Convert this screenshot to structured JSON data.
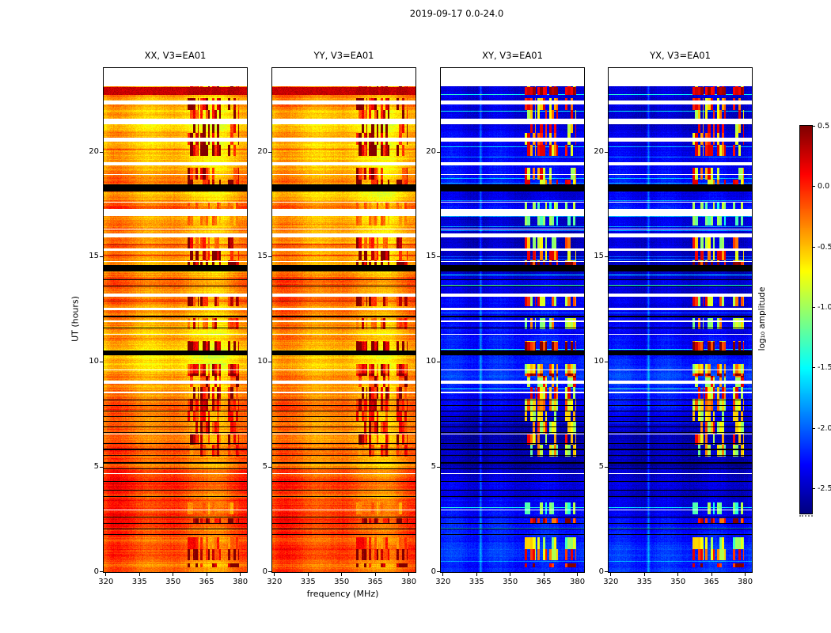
{
  "figure": {
    "title": "2019-09-17 0.0-24.0"
  },
  "panels": [
    {
      "title": "XX, V3=EA01"
    },
    {
      "title": "YY, V3=EA01"
    },
    {
      "title": "XY, V3=EA01"
    },
    {
      "title": "YX, V3=EA01"
    }
  ],
  "axes": {
    "xlabel": "frequency (MHz)",
    "ylabel": "UT (hours)",
    "xticks": [
      320,
      335,
      350,
      365,
      380
    ],
    "yticks": [
      0,
      5,
      10,
      15,
      20
    ],
    "xlim": [
      319,
      383
    ],
    "ylim": [
      0,
      24
    ]
  },
  "colorbar": {
    "label": "log₁₀ amplitude",
    "tick_labels": [
      "0.5",
      "0.0",
      "-0.5",
      "-1.0",
      "-1.5",
      "-2.0",
      "-2.5"
    ],
    "tick_values": [
      0.5,
      0.0,
      -0.5,
      -1.0,
      -1.5,
      -2.0,
      -2.5
    ],
    "vmin": -2.7,
    "vmax": 0.51,
    "cmap": "jet"
  },
  "chart_data": {
    "type": "heatmap",
    "title": "2019-09-17 0.0-24.0",
    "layout": "four dynamic-spectrum (waterfall) panels side by side sharing a jet colorbar",
    "panels": [
      {
        "title": "XX, V3=EA01",
        "polarization": "XX",
        "appearance": "parallel-hand, high amplitude: orange/yellow background with red RFI blocks, log10 amp ~ -0.6 to +0.3"
      },
      {
        "title": "YY, V3=EA01",
        "polarization": "YY",
        "appearance": "parallel-hand, high amplitude: orange/yellow background with red RFI blocks, log10 amp ~ -0.6 to +0.3"
      },
      {
        "title": "XY, V3=EA01",
        "polarization": "XY",
        "appearance": "cross-hand, low amplitude: dark blue background (~ -2.5 to -2.0) with cyan streaks and green/orange RFI blocks"
      },
      {
        "title": "YX, V3=EA01",
        "polarization": "YX",
        "appearance": "cross-hand, low amplitude: dark blue background (~ -2.5 to -2.0) with cyan streaks and green/orange RFI blocks"
      }
    ],
    "x": {
      "label": "frequency (MHz)",
      "range": [
        319,
        383
      ],
      "ticks": [
        320,
        335,
        350,
        365,
        380
      ]
    },
    "y": {
      "label": "UT (hours)",
      "range": [
        0,
        24
      ],
      "ticks": [
        0,
        5,
        10,
        15,
        20
      ]
    },
    "color_scale": {
      "label": "log10 amplitude",
      "cmap": "jet",
      "vmin": -2.7,
      "vmax": 0.51,
      "ticks": [
        0.5,
        0.0,
        -0.5,
        -1.0,
        -1.5,
        -2.0,
        -2.5
      ]
    },
    "features": {
      "white_gap_times_hours": [
        [
          23.12,
          24.0
        ],
        [
          22.28,
          22.45
        ],
        [
          21.32,
          21.6
        ],
        [
          20.5,
          20.68
        ],
        [
          19.38,
          19.5
        ],
        [
          18.92,
          18.96
        ],
        [
          17.58,
          17.62
        ],
        [
          16.95,
          17.28
        ],
        [
          16.3,
          16.34
        ],
        [
          15.95,
          16.12
        ],
        [
          15.28,
          15.4
        ],
        [
          14.78,
          14.82
        ],
        [
          13.12,
          13.28
        ],
        [
          12.48,
          12.6
        ],
        [
          11.92,
          11.97
        ],
        [
          11.3,
          11.35
        ],
        [
          9.62,
          9.66
        ],
        [
          8.98,
          9.12
        ],
        [
          8.5,
          8.6
        ],
        [
          6.55,
          6.6
        ],
        [
          4.66,
          4.7
        ],
        [
          2.92,
          2.96
        ],
        [
          0.55,
          0.58
        ]
      ],
      "flagged_black_times_hours": [
        [
          18.12,
          18.45
        ],
        [
          14.32,
          14.6
        ],
        [
          10.32,
          10.55
        ],
        [
          13.6,
          13.64
        ],
        [
          13.92,
          13.95
        ],
        [
          12.15,
          12.19
        ],
        [
          11.62,
          11.65
        ],
        [
          8.18,
          8.22
        ],
        [
          7.92,
          7.96
        ],
        [
          7.66,
          7.7
        ],
        [
          7.4,
          7.44
        ],
        [
          7.14,
          7.18
        ],
        [
          6.88,
          6.92
        ],
        [
          6.62,
          6.66
        ],
        [
          6.1,
          6.14
        ],
        [
          5.82,
          5.86
        ],
        [
          5.55,
          5.59
        ],
        [
          5.18,
          5.22
        ],
        [
          4.88,
          4.92
        ],
        [
          4.28,
          4.32
        ],
        [
          3.88,
          3.92
        ],
        [
          3.58,
          3.62
        ],
        [
          2.6,
          2.64
        ],
        [
          2.28,
          2.32
        ],
        [
          2.02,
          2.06
        ],
        [
          1.78,
          1.82
        ],
        [
          1.3,
          1.33
        ],
        [
          0.85,
          0.88
        ]
      ],
      "rfi_frequency_bands_mhz": [
        [
          356.5,
          361.3
        ],
        [
          362.2,
          366.4
        ],
        [
          367.3,
          371.4
        ],
        [
          374.6,
          379.6
        ]
      ],
      "rfi_strong_times_hours": [
        [
          22.72,
          23.1
        ],
        [
          10.55,
          10.95
        ],
        [
          9.25,
          9.45
        ],
        [
          2.3,
          2.58
        ],
        [
          0.22,
          0.42
        ],
        [
          14.62,
          14.78
        ]
      ],
      "saturated_red_time_hours": [
        22.72,
        23.1
      ],
      "narrow_bright_line_mhz": 336.8,
      "parallel_hand_level_log10": [
        -0.6,
        0.2
      ],
      "cross_hand_level_log10": [
        -2.5,
        -1.8
      ]
    }
  }
}
